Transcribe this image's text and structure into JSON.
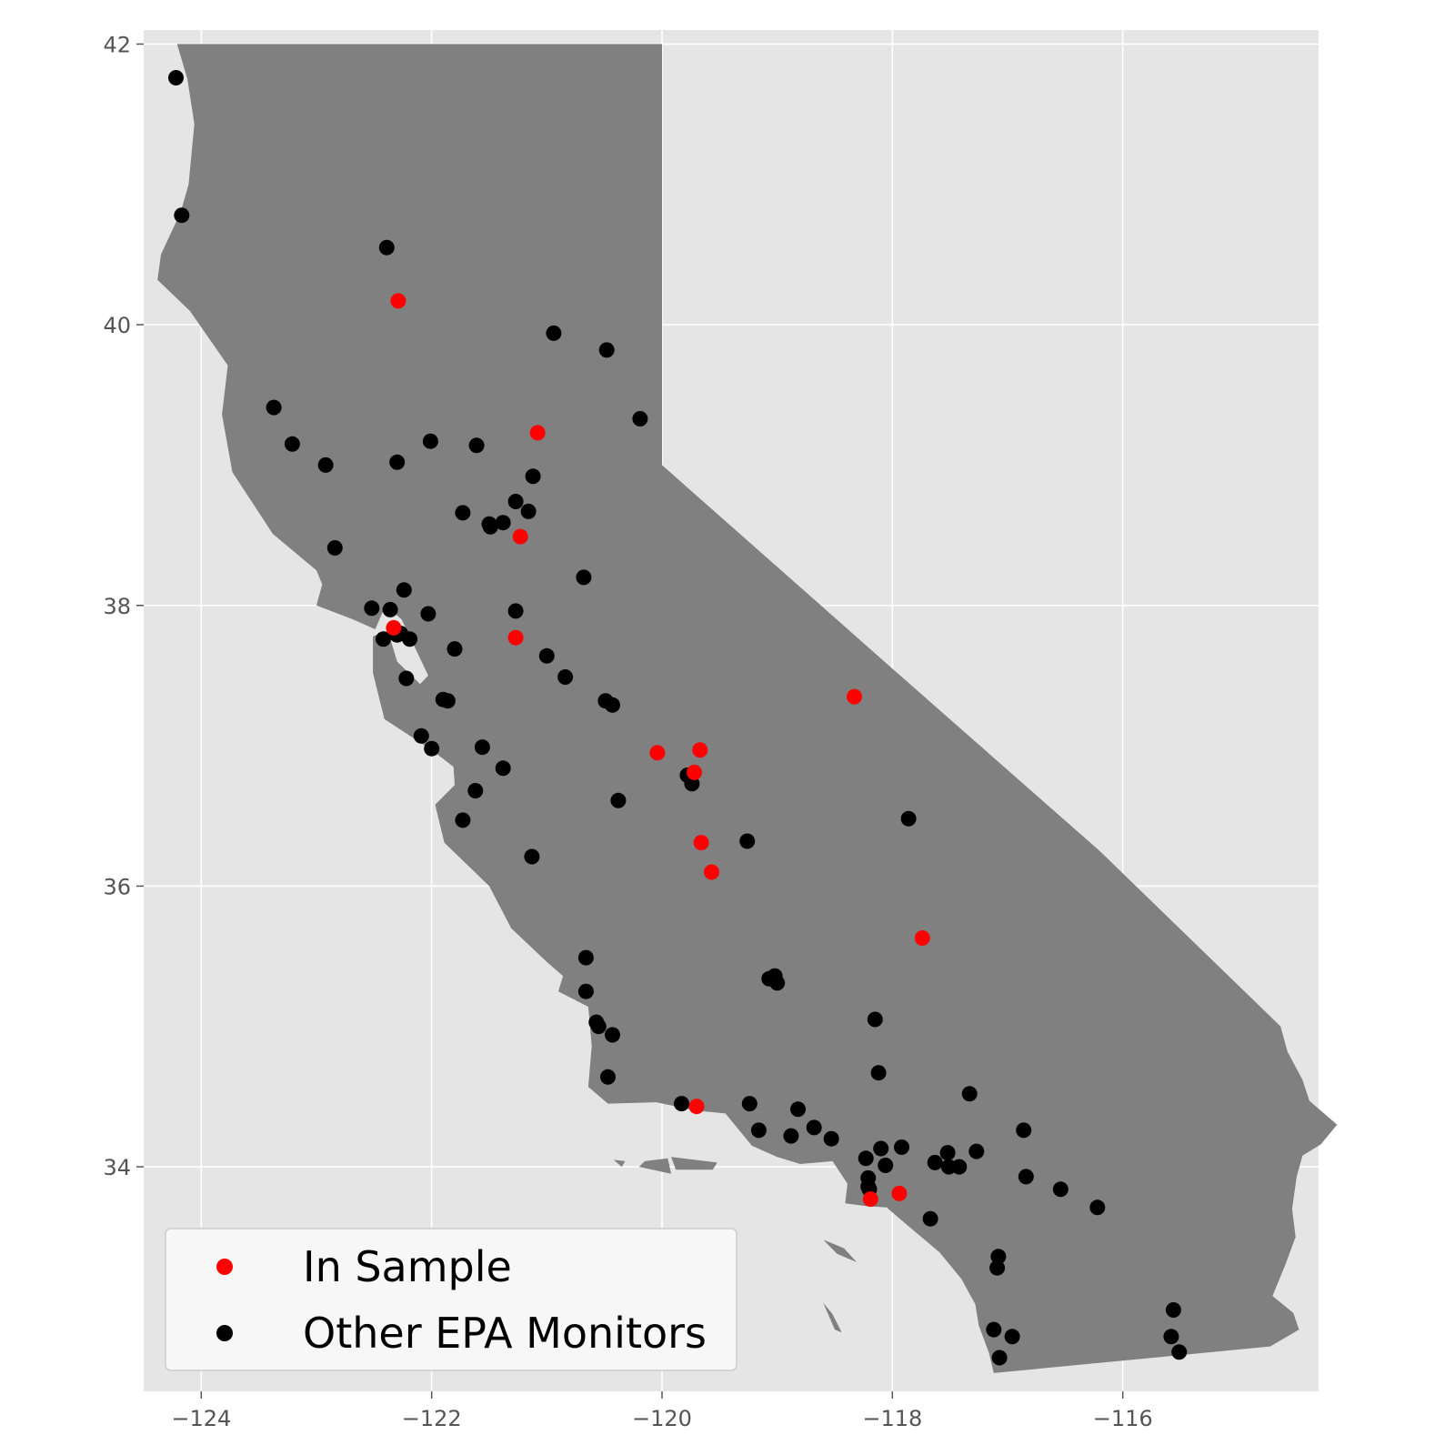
{
  "chart_data": {
    "type": "scatter",
    "title": "",
    "xlabel": "",
    "ylabel": "",
    "xlim": [
      -124.5,
      -114.3
    ],
    "ylim": [
      32.4,
      42.1
    ],
    "x_ticks": [
      -124,
      -122,
      -120,
      -118,
      -116
    ],
    "y_ticks": [
      34,
      36,
      38,
      40,
      42
    ],
    "x_tick_labels": [
      "−124",
      "−122",
      "−120",
      "−118",
      "−116"
    ],
    "y_tick_labels": [
      "34",
      "36",
      "38",
      "40",
      "42"
    ],
    "grid": true,
    "background_color": "#e5e5e5",
    "land_color": "#808080",
    "legend_position": "lower-left",
    "series": [
      {
        "name": "In Sample",
        "color": "#ff0000",
        "points": [
          [
            -122.29,
            40.17
          ],
          [
            -121.08,
            39.23
          ],
          [
            -121.23,
            38.49
          ],
          [
            -122.33,
            37.84
          ],
          [
            -121.27,
            37.77
          ],
          [
            -120.04,
            36.95
          ],
          [
            -119.67,
            36.97
          ],
          [
            -119.72,
            36.81
          ],
          [
            -118.33,
            37.35
          ],
          [
            -119.66,
            36.31
          ],
          [
            -119.57,
            36.1
          ],
          [
            -117.74,
            35.63
          ],
          [
            -119.7,
            34.43
          ],
          [
            -118.19,
            33.77
          ],
          [
            -117.94,
            33.81
          ]
        ]
      },
      {
        "name": "Other EPA Monitors",
        "color": "#000000",
        "points": [
          [
            -124.22,
            41.76
          ],
          [
            -124.17,
            40.78
          ],
          [
            -122.39,
            40.55
          ],
          [
            -120.94,
            39.94
          ],
          [
            -120.48,
            39.82
          ],
          [
            -120.19,
            39.33
          ],
          [
            -123.37,
            39.41
          ],
          [
            -123.21,
            39.15
          ],
          [
            -122.92,
            39.0
          ],
          [
            -122.3,
            39.02
          ],
          [
            -122.01,
            39.17
          ],
          [
            -121.61,
            39.14
          ],
          [
            -121.12,
            38.92
          ],
          [
            -121.27,
            38.74
          ],
          [
            -121.16,
            38.67
          ],
          [
            -121.73,
            38.66
          ],
          [
            -121.5,
            38.58
          ],
          [
            -121.49,
            38.56
          ],
          [
            -121.38,
            38.59
          ],
          [
            -122.84,
            38.41
          ],
          [
            -120.68,
            38.2
          ],
          [
            -122.24,
            38.11
          ],
          [
            -122.52,
            37.98
          ],
          [
            -122.36,
            37.97
          ],
          [
            -122.03,
            37.94
          ],
          [
            -121.27,
            37.96
          ],
          [
            -122.27,
            37.8
          ],
          [
            -122.3,
            37.79
          ],
          [
            -122.42,
            37.76
          ],
          [
            -122.19,
            37.76
          ],
          [
            -121.8,
            37.69
          ],
          [
            -121.0,
            37.64
          ],
          [
            -122.22,
            37.48
          ],
          [
            -120.84,
            37.49
          ],
          [
            -121.9,
            37.33
          ],
          [
            -121.86,
            37.32
          ],
          [
            -120.49,
            37.32
          ],
          [
            -120.43,
            37.29
          ],
          [
            -122.09,
            37.07
          ],
          [
            -122.0,
            36.98
          ],
          [
            -121.56,
            36.99
          ],
          [
            -121.38,
            36.84
          ],
          [
            -119.78,
            36.79
          ],
          [
            -119.74,
            36.73
          ],
          [
            -121.62,
            36.68
          ],
          [
            -120.38,
            36.61
          ],
          [
            -121.73,
            36.47
          ],
          [
            -117.86,
            36.48
          ],
          [
            -119.26,
            36.32
          ],
          [
            -121.13,
            36.21
          ],
          [
            -120.66,
            35.49
          ],
          [
            -120.66,
            35.25
          ],
          [
            -119.07,
            35.34
          ],
          [
            -119.02,
            35.36
          ],
          [
            -119.0,
            35.31
          ],
          [
            -120.57,
            35.03
          ],
          [
            -120.55,
            35.0
          ],
          [
            -120.43,
            34.94
          ],
          [
            -118.15,
            35.05
          ],
          [
            -120.47,
            34.64
          ],
          [
            -118.12,
            34.67
          ],
          [
            -117.33,
            34.52
          ],
          [
            -119.83,
            34.45
          ],
          [
            -119.24,
            34.45
          ],
          [
            -118.82,
            34.41
          ],
          [
            -118.68,
            34.28
          ],
          [
            -119.16,
            34.26
          ],
          [
            -118.88,
            34.22
          ],
          [
            -118.53,
            34.2
          ],
          [
            -116.86,
            34.26
          ],
          [
            -118.1,
            34.13
          ],
          [
            -117.92,
            34.14
          ],
          [
            -118.23,
            34.06
          ],
          [
            -118.06,
            34.01
          ],
          [
            -117.63,
            34.03
          ],
          [
            -117.52,
            34.1
          ],
          [
            -117.51,
            34.0
          ],
          [
            -117.42,
            34.0
          ],
          [
            -117.27,
            34.11
          ],
          [
            -118.21,
            33.92
          ],
          [
            -118.21,
            33.86
          ],
          [
            -118.2,
            33.84
          ],
          [
            -116.84,
            33.93
          ],
          [
            -116.54,
            33.84
          ],
          [
            -116.22,
            33.71
          ],
          [
            -117.67,
            33.63
          ],
          [
            -117.08,
            33.36
          ],
          [
            -117.09,
            33.28
          ],
          [
            -117.12,
            32.84
          ],
          [
            -116.96,
            32.79
          ],
          [
            -117.07,
            32.64
          ],
          [
            -115.56,
            32.98
          ],
          [
            -115.58,
            32.79
          ],
          [
            -115.51,
            32.68
          ]
        ]
      }
    ]
  }
}
